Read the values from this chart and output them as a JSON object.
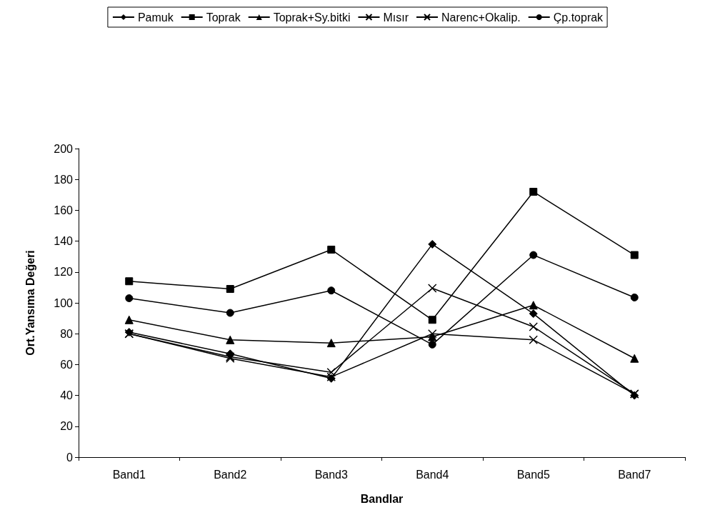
{
  "chart_data": {
    "type": "line",
    "xlabel": "Bandlar",
    "ylabel": "Ort.Yansıma Değeri",
    "categories": [
      "Band1",
      "Band2",
      "Band3",
      "Band4",
      "Band5",
      "Band7"
    ],
    "series": [
      {
        "name": "Pamuk",
        "color": "#000000",
        "marker": "diamond",
        "values": [
          81,
          67,
          51,
          138,
          93,
          40
        ]
      },
      {
        "name": "Toprak",
        "color": "#000000",
        "marker": "square",
        "values": [
          114,
          109,
          134.5,
          89,
          172,
          131
        ]
      },
      {
        "name": "Toprak+Sy.bitki",
        "color": "#000000",
        "marker": "triangle",
        "values": [
          89,
          76,
          74,
          78,
          98.5,
          64
        ]
      },
      {
        "name": "Mısır",
        "color": "#000000",
        "marker": "cross",
        "values": [
          80,
          65,
          55,
          109.5,
          84.5,
          41
        ]
      },
      {
        "name": "Narenc+Okalip.",
        "color": "#000000",
        "marker": "cross",
        "values": [
          80,
          64,
          52,
          80,
          76,
          41
        ]
      },
      {
        "name": "Çp.toprak",
        "color": "#000000",
        "marker": "circle",
        "values": [
          103,
          93.5,
          108,
          73,
          131,
          103.5
        ]
      }
    ],
    "ylim": [
      0,
      200
    ],
    "yticks": [
      0,
      20,
      40,
      60,
      80,
      100,
      120,
      140,
      160,
      180,
      200
    ],
    "grid": false,
    "legend": "top",
    "line_style": "solid"
  }
}
